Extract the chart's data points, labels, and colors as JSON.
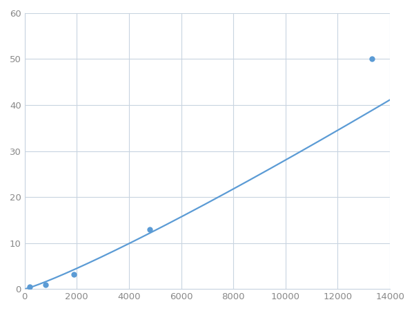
{
  "x_points": [
    200,
    800,
    1900,
    4800,
    13300
  ],
  "y_points": [
    0.5,
    1.0,
    3.2,
    13.0,
    50.0
  ],
  "line_color": "#5b9bd5",
  "marker_color": "#5b9bd5",
  "marker_size": 6,
  "line_width": 1.6,
  "xlim": [
    0,
    14000
  ],
  "ylim": [
    0,
    60
  ],
  "xticks": [
    0,
    2000,
    4000,
    6000,
    8000,
    10000,
    12000,
    14000
  ],
  "yticks": [
    0,
    10,
    20,
    30,
    40,
    50,
    60
  ],
  "grid_color": "#c8d4e0",
  "background_color": "#ffffff",
  "figure_bg": "#ffffff",
  "tick_color": "#888888",
  "tick_fontsize": 9.5
}
